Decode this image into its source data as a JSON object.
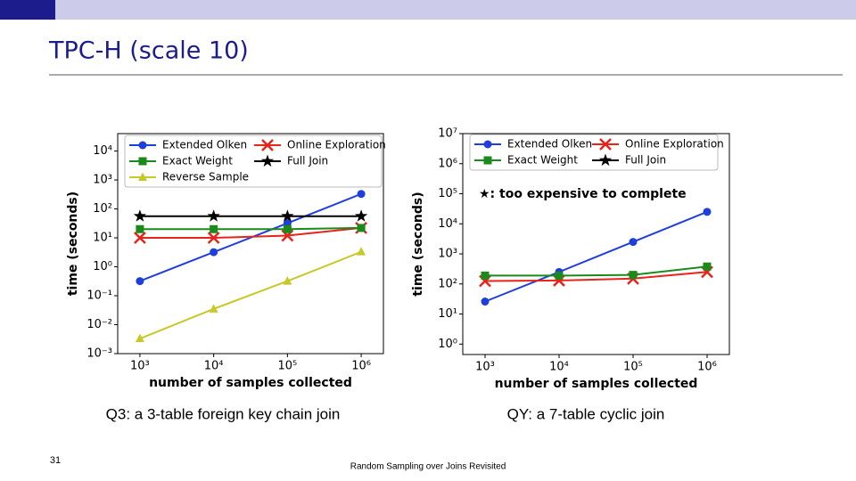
{
  "slide_title": "TPC-H (scale 10)",
  "captions": [
    "Q3: a 3-table foreign key chain join",
    "QY: a 7-table cyclic join"
  ],
  "page_number": "31",
  "footer": "Random Sampling over Joins Revisited",
  "chart_data": [
    {
      "type": "line",
      "xlabel": "number of samples collected",
      "ylabel": "time (seconds)",
      "log_x": true,
      "log_y": true,
      "legend": "upper left",
      "legend_columns": 2,
      "x": [
        1000,
        10000,
        100000,
        1000000
      ],
      "xlim": [
        500,
        2000000
      ],
      "xticks": [
        {
          "value": 1000,
          "label": "10³"
        },
        {
          "value": 10000,
          "label": "10⁴"
        },
        {
          "value": 100000,
          "label": "10⁵"
        },
        {
          "value": 1000000,
          "label": "10⁶"
        }
      ],
      "ylim": [
        0.001,
        40000
      ],
      "yticks": [
        {
          "value": 0.001,
          "label": "10⁻³"
        },
        {
          "value": 0.01,
          "label": "10⁻²"
        },
        {
          "value": 0.1,
          "label": "10⁻¹"
        },
        {
          "value": 1,
          "label": "10⁰"
        },
        {
          "value": 10,
          "label": "10¹"
        },
        {
          "value": 100,
          "label": "10²"
        },
        {
          "value": 1000,
          "label": "10³"
        },
        {
          "value": 10000,
          "label": "10⁴"
        }
      ],
      "series": [
        {
          "name": "Extended Olken",
          "color": "#1f3fdd",
          "marker": "circle",
          "values": [
            0.32,
            3.2,
            32,
            330
          ]
        },
        {
          "name": "Online Exploration",
          "color": "#e8231a",
          "marker": "x",
          "values": [
            10,
            10,
            12,
            22
          ]
        },
        {
          "name": "Exact Weight",
          "color": "#1a8a1a",
          "marker": "square",
          "values": [
            20,
            20,
            20,
            22
          ]
        },
        {
          "name": "Full Join",
          "color": "#000000",
          "marker": "star",
          "values": [
            56,
            56,
            56,
            56
          ]
        },
        {
          "name": "Reverse Sample",
          "color": "#c8c82a",
          "marker": "triangle",
          "values": [
            0.0033,
            0.035,
            0.32,
            3.3
          ]
        }
      ]
    },
    {
      "type": "line",
      "xlabel": "number of samples collected",
      "ylabel": "time (seconds)",
      "log_x": true,
      "log_y": true,
      "legend": "upper left",
      "legend_columns": 2,
      "annotation": "★: too expensive to complete",
      "x": [
        1000,
        10000,
        100000,
        1000000
      ],
      "xlim": [
        500,
        2000000
      ],
      "xticks": [
        {
          "value": 1000,
          "label": "10³"
        },
        {
          "value": 10000,
          "label": "10⁴"
        },
        {
          "value": 100000,
          "label": "10⁵"
        },
        {
          "value": 1000000,
          "label": "10⁶"
        }
      ],
      "ylim": [
        0.45,
        10000000
      ],
      "yticks": [
        {
          "value": 1,
          "label": "10⁰"
        },
        {
          "value": 10,
          "label": "10¹"
        },
        {
          "value": 100,
          "label": "10²"
        },
        {
          "value": 1000,
          "label": "10³"
        },
        {
          "value": 10000,
          "label": "10⁴"
        },
        {
          "value": 100000,
          "label": "10⁵"
        },
        {
          "value": 1000000,
          "label": "10⁶"
        },
        {
          "value": 10000000,
          "label": "10⁷"
        }
      ],
      "series": [
        {
          "name": "Extended Olken",
          "color": "#1f3fdd",
          "marker": "circle",
          "values": [
            26,
            250,
            2500,
            25000
          ]
        },
        {
          "name": "Online Exploration",
          "color": "#e8231a",
          "marker": "x",
          "values": [
            125,
            130,
            150,
            250
          ]
        },
        {
          "name": "Exact Weight",
          "color": "#1a8a1a",
          "marker": "square",
          "values": [
            190,
            190,
            200,
            380
          ]
        },
        {
          "name": "Full Join",
          "color": "#000000",
          "marker": "star",
          "values": [
            null,
            null,
            null,
            null
          ]
        }
      ]
    }
  ]
}
